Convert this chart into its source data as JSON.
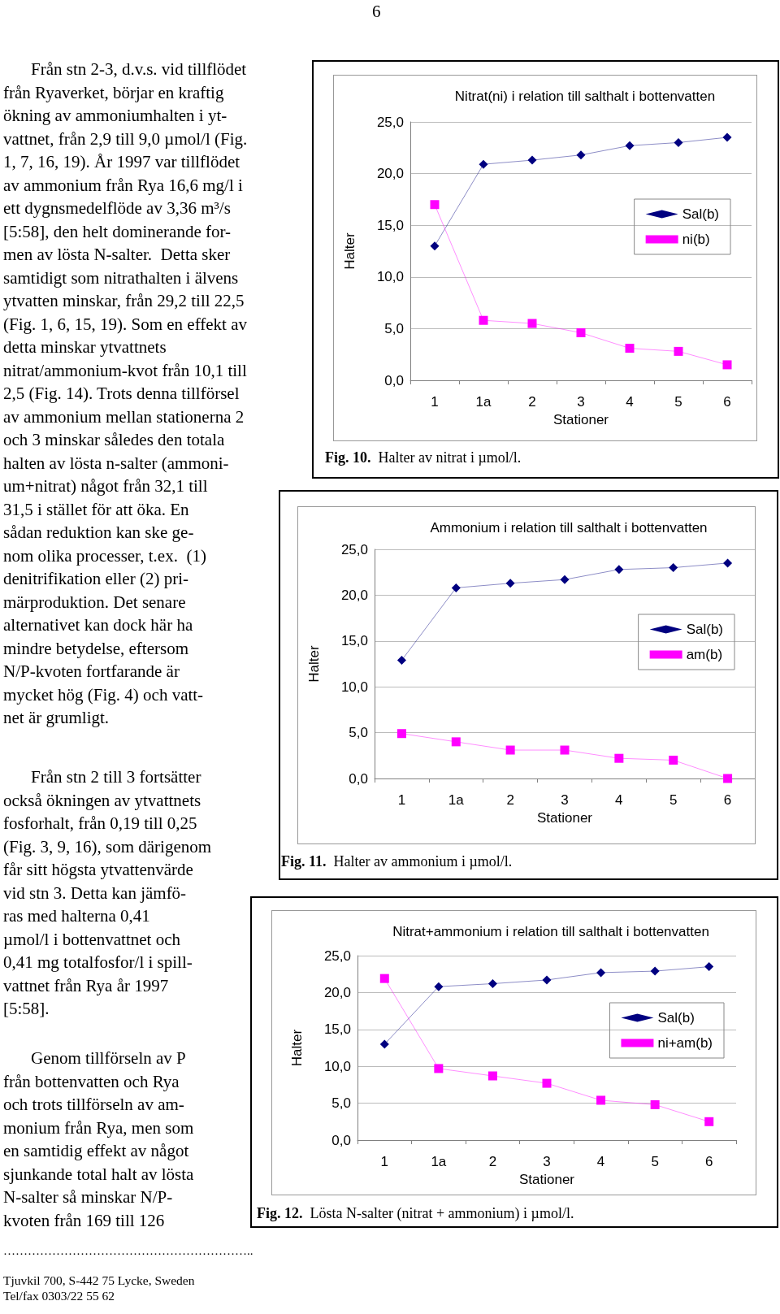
{
  "chart_data": [
    {
      "type": "other",
      "annotations": [
        "6",
        "Från stn 2-3, d.v.s. vid tillflödet\nfrån Ryaverket, börjar en kraftig\nökning av ammoniumhalten i yt-\nvattnet, från 2,9 till 9,0 µmol/l (Fig.\n1, 7, 16, 19). År 1997 var tillflödet\nav ammonium från Rya 16,6 mg/l i\nett dygnsmedelflöde av 3,36 m³/s\n[5:58], den helt dominerande for-\nmen av lösta N-salter.  Detta sker\nsamtidigt som nitrathalten i älvens\nytvatten minskar, från 29,2 till 22,5\n(Fig. 1, 6, 15, 19). Som en effekt av\ndetta minskar ytvattnets\nnitrat/ammonium-kvot från 10,1 till\n2,5 (Fig. 14). Trots denna tillförsel\nav ammonium mellan stationerna 2\noch 3 minskar således den totala\nhalten av lösta n-salter (ammoni-\num+nitrat) något från 32,1 till\n31,5 i stället för att öka. En\nsådan reduktion kan ske ge-\nnom olika processer, t.ex.  (1)\ndenitrifikation eller (2) pri-\nmärproduktion. Det senare\nalternativet kan dock här ha\nmindre betydelse, eftersom\nN/P-kvoten fortfarande är\nmycket hög (Fig. 4) och vatt-\nnet är grumligt.",
        "Från stn 2 till 3 fortsätter\nockså ökningen av ytvattnets\nfosforhalt, från 0,19 till 0,25\n(Fig. 3, 9, 16), som därigenom\nfår sitt högsta ytvattenvärde\nvid stn 3. Detta kan jämfö-\nras med halterna 0,41\nµmol/l i bottenvattnet och\n0,41 mg totalfosfor/l i spill-\nvattnet från Rya år 1997\n[5:58].",
        "Genom tillförseln av P\nfrån bottenvatten och Rya\noch trots tillförseln av am-\nmonium från Rya, men som\nen samtidig effekt av något\nsjunkande total halt av lösta\nN-salter så minskar N/P-\nkvoten från 169 till 126",
        "……………………………………………………..",
        "Tjuvkil 700, S-442 75 Lycke, Sweden\nTel/fax 0303/22 55 62"
      ]
    },
    {
      "type": "line",
      "title": "Nitrat(ni) i relation till salthalt i bottenvatten",
      "xlabel": "Stationer",
      "ylabel": "Halter",
      "categories": [
        "1",
        "1a",
        "2",
        "3",
        "4",
        "5",
        "6"
      ],
      "series": [
        {
          "name": "Sal(b)",
          "color": "#000080",
          "marker": "diamond",
          "values": [
            13.0,
            20.9,
            21.3,
            21.8,
            22.7,
            23.0,
            23.5
          ]
        },
        {
          "name": "ni(b)",
          "color": "#ff00ff",
          "marker": "square",
          "values": [
            17.0,
            5.8,
            5.5,
            4.6,
            3.1,
            2.8,
            1.5
          ]
        }
      ],
      "ylim": [
        0,
        25
      ],
      "yticks": [
        {
          "value": 0,
          "label": "0,0"
        },
        {
          "value": 5,
          "label": "5,0"
        },
        {
          "value": 10,
          "label": "10,0"
        },
        {
          "value": 15,
          "label": "15,0"
        },
        {
          "value": 20,
          "label": "20,0"
        },
        {
          "value": 25,
          "label": "25,0"
        }
      ],
      "grid": "y",
      "legend": "right",
      "annotations": [
        "Fig. 10.  Halter av nitrat i µmol/l."
      ]
    },
    {
      "type": "line",
      "title": "Ammonium i relation till salthalt i bottenvatten",
      "xlabel": "Stationer",
      "ylabel": "Halter",
      "categories": [
        "1",
        "1a",
        "2",
        "3",
        "4",
        "5",
        "6"
      ],
      "series": [
        {
          "name": "Sal(b)",
          "color": "#000080",
          "marker": "diamond",
          "values": [
            12.9,
            20.8,
            21.3,
            21.7,
            22.8,
            23.0,
            23.5
          ]
        },
        {
          "name": "am(b)",
          "color": "#ff00ff",
          "marker": "square",
          "values": [
            4.9,
            4.0,
            3.1,
            3.1,
            2.2,
            2.0,
            0.0
          ]
        }
      ],
      "ylim": [
        0,
        25
      ],
      "yticks": [
        {
          "value": 0,
          "label": "0,0"
        },
        {
          "value": 5,
          "label": "5,0"
        },
        {
          "value": 10,
          "label": "10,0"
        },
        {
          "value": 15,
          "label": "15,0"
        },
        {
          "value": 20,
          "label": "20,0"
        },
        {
          "value": 25,
          "label": "25,0"
        }
      ],
      "grid": "y",
      "legend": "right",
      "annotations": [
        "Fig. 11.  Halter av ammonium i µmol/l."
      ]
    },
    {
      "type": "line",
      "title": "Nitrat+ammonium i relation till salthalt i bottenvatten",
      "xlabel": "Stationer",
      "ylabel": "Halter",
      "categories": [
        "1",
        "1a",
        "2",
        "3",
        "4",
        "5",
        "6"
      ],
      "series": [
        {
          "name": "Sal(b)",
          "color": "#000080",
          "marker": "diamond",
          "values": [
            13.0,
            20.8,
            21.2,
            21.7,
            22.7,
            22.9,
            23.5
          ]
        },
        {
          "name": "ni+am(b)",
          "color": "#ff00ff",
          "marker": "square",
          "values": [
            21.9,
            9.7,
            8.7,
            7.7,
            5.4,
            4.8,
            2.5
          ]
        }
      ],
      "ylim": [
        0,
        25
      ],
      "yticks": [
        {
          "value": 0,
          "label": "0,0"
        },
        {
          "value": 5,
          "label": "5,0"
        },
        {
          "value": 10,
          "label": "10,0"
        },
        {
          "value": 15,
          "label": "15,0"
        },
        {
          "value": 20,
          "label": "20,0"
        },
        {
          "value": 25,
          "label": "25,0"
        }
      ],
      "grid": "y",
      "legend": "right",
      "annotations": [
        "Fig. 12.  Lösta N-salter (nitrat + ammonium) i µmol/l."
      ]
    }
  ]
}
